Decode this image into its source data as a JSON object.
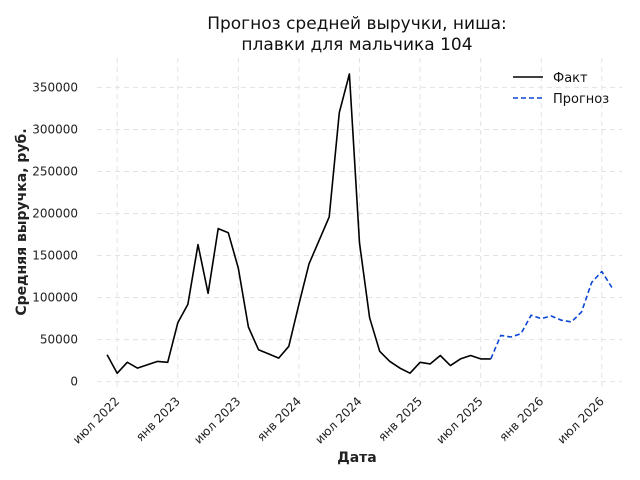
{
  "chart_data": {
    "type": "line",
    "title_lines": [
      "Прогноз средней выручки, ниша:",
      "плавки для мальчика 104"
    ],
    "xlabel": "Дата",
    "ylabel": "Средняя выручка, руб.",
    "ylim": [
      -10000,
      385000
    ],
    "yticks": [
      0,
      50000,
      100000,
      150000,
      200000,
      250000,
      300000,
      350000
    ],
    "ytick_labels": [
      "0",
      "50000",
      "100000",
      "150000",
      "200000",
      "250000",
      "300000",
      "350000"
    ],
    "x_start": "2022-05",
    "x_end": "2026-09",
    "xticks": [
      "2022-07",
      "2023-01",
      "2023-07",
      "2024-01",
      "2024-07",
      "2025-01",
      "2025-07",
      "2026-01",
      "2026-07"
    ],
    "xtick_labels": [
      "июл 2022",
      "янв 2023",
      "июл 2023",
      "янв 2024",
      "июл 2024",
      "янв 2025",
      "июл 2025",
      "янв 2026",
      "июл 2026"
    ],
    "grid": true,
    "legend_position": "top-right",
    "series": [
      {
        "name": "Факт",
        "color": "#000000",
        "style": "solid",
        "x": [
          "2022-06",
          "2022-07",
          "2022-08",
          "2022-09",
          "2022-10",
          "2022-11",
          "2022-12",
          "2023-01",
          "2023-02",
          "2023-03",
          "2023-04",
          "2023-05",
          "2023-06",
          "2023-07",
          "2023-08",
          "2023-09",
          "2023-10",
          "2023-11",
          "2023-12",
          "2024-01",
          "2024-02",
          "2024-03",
          "2024-04",
          "2024-05",
          "2024-06",
          "2024-07",
          "2024-08",
          "2024-09",
          "2024-10",
          "2024-11",
          "2024-12",
          "2025-01",
          "2025-02",
          "2025-03",
          "2025-04",
          "2025-05",
          "2025-06",
          "2025-07",
          "2025-08"
        ],
        "values": [
          32000,
          10000,
          23000,
          16000,
          20000,
          24000,
          23000,
          70000,
          92000,
          163000,
          105000,
          182000,
          177000,
          135000,
          65000,
          38000,
          33000,
          28000,
          42000,
          92000,
          140000,
          168000,
          196000,
          320000,
          366000,
          165000,
          76000,
          36000,
          24000,
          16000,
          10000,
          23000,
          21000,
          31000,
          19000,
          27000,
          31000,
          27000,
          27000
        ]
      },
      {
        "name": "Прогноз",
        "color": "#0b46d6",
        "style": "dashed",
        "x": [
          "2025-08",
          "2025-09",
          "2025-10",
          "2025-11",
          "2025-12",
          "2026-01",
          "2026-02",
          "2026-03",
          "2026-04",
          "2026-05",
          "2026-06",
          "2026-07",
          "2026-08"
        ],
        "values": [
          27000,
          55000,
          53000,
          57000,
          79000,
          75000,
          78000,
          73000,
          71000,
          83000,
          118000,
          131000,
          112000
        ]
      }
    ]
  }
}
